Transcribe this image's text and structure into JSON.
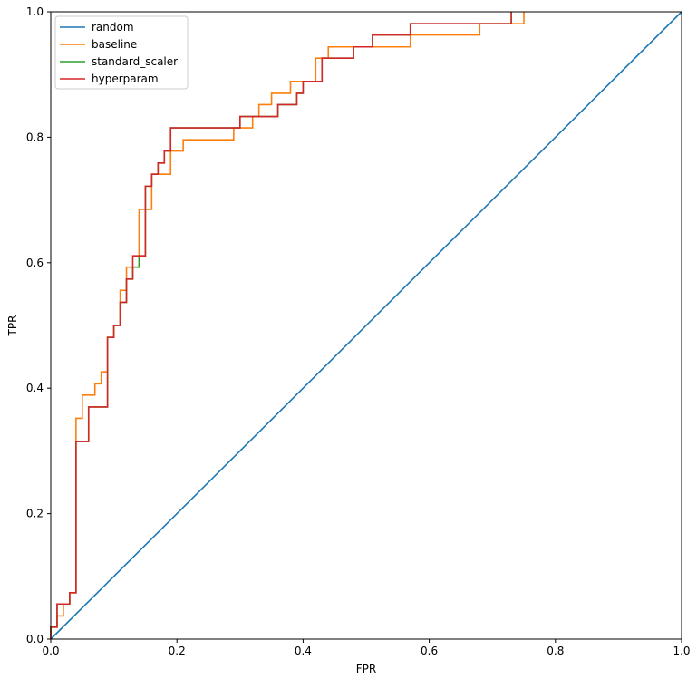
{
  "chart_data": {
    "type": "line",
    "title": "",
    "xlabel": "FPR",
    "ylabel": "TPR",
    "xlim": [
      0,
      1
    ],
    "ylim": [
      0,
      1
    ],
    "xticks": [
      "0.0",
      "0.2",
      "0.4",
      "0.6",
      "0.8",
      "1.0"
    ],
    "yticks": [
      "0.0",
      "0.2",
      "0.4",
      "0.6",
      "0.8",
      "1.0"
    ],
    "grid": false,
    "legend_position": "top-left",
    "series": [
      {
        "name": "random",
        "color": "#1f77b4",
        "x": [
          0,
          1
        ],
        "y": [
          0,
          1
        ]
      },
      {
        "name": "baseline",
        "color": "#ff7f0e",
        "x": [
          0,
          0,
          0.01,
          0.01,
          0.02,
          0.02,
          0.03,
          0.03,
          0.04,
          0.04,
          0.05,
          0.05,
          0.07,
          0.07,
          0.08,
          0.08,
          0.09,
          0.09,
          0.1,
          0.1,
          0.11,
          0.11,
          0.12,
          0.12,
          0.14,
          0.14,
          0.16,
          0.16,
          0.19,
          0.19,
          0.21,
          0.21,
          0.29,
          0.29,
          0.32,
          0.32,
          0.33,
          0.33,
          0.35,
          0.35,
          0.38,
          0.38,
          0.42,
          0.42,
          0.44,
          0.44,
          0.5,
          0.5,
          0.57,
          0.57,
          0.68,
          0.68,
          0.75,
          0.75
        ],
        "y": [
          0,
          0.019,
          0.019,
          0.037,
          0.037,
          0.056,
          0.056,
          0.074,
          0.074,
          0.352,
          0.352,
          0.389,
          0.389,
          0.407,
          0.407,
          0.426,
          0.426,
          0.481,
          0.481,
          0.5,
          0.5,
          0.556,
          0.556,
          0.593,
          0.593,
          0.685,
          0.685,
          0.741,
          0.741,
          0.778,
          0.778,
          0.796,
          0.796,
          0.815,
          0.815,
          0.833,
          0.833,
          0.852,
          0.852,
          0.87,
          0.87,
          0.889,
          0.889,
          0.926,
          0.926,
          0.944,
          0.944,
          0.944,
          0.944,
          0.963,
          0.963,
          0.981,
          0.981,
          1.0
        ]
      },
      {
        "name": "standard_scaler",
        "color": "#2ca02c",
        "x": [
          0,
          0,
          0.01,
          0.01,
          0.03,
          0.03,
          0.04,
          0.04,
          0.06,
          0.06,
          0.09,
          0.09,
          0.1,
          0.1,
          0.11,
          0.11,
          0.12,
          0.12,
          0.13,
          0.13,
          0.14,
          0.14,
          0.15,
          0.15,
          0.16,
          0.16,
          0.17,
          0.17,
          0.18,
          0.18,
          0.19,
          0.19,
          0.3,
          0.3,
          0.36,
          0.36,
          0.39,
          0.39,
          0.4,
          0.4,
          0.43,
          0.43,
          0.48,
          0.48,
          0.51,
          0.51,
          0.57,
          0.57,
          0.73,
          0.73
        ],
        "y": [
          0,
          0.019,
          0.019,
          0.056,
          0.056,
          0.074,
          0.074,
          0.315,
          0.315,
          0.37,
          0.37,
          0.481,
          0.481,
          0.5,
          0.5,
          0.537,
          0.537,
          0.574,
          0.574,
          0.593,
          0.593,
          0.611,
          0.611,
          0.722,
          0.722,
          0.741,
          0.741,
          0.759,
          0.759,
          0.778,
          0.778,
          0.815,
          0.815,
          0.833,
          0.833,
          0.852,
          0.852,
          0.87,
          0.87,
          0.889,
          0.889,
          0.926,
          0.926,
          0.944,
          0.944,
          0.963,
          0.963,
          0.981,
          0.981,
          1.0
        ]
      },
      {
        "name": "hyperparam",
        "color": "#d62728",
        "x": [
          0,
          0,
          0.01,
          0.01,
          0.03,
          0.03,
          0.04,
          0.04,
          0.06,
          0.06,
          0.09,
          0.09,
          0.1,
          0.1,
          0.11,
          0.11,
          0.12,
          0.12,
          0.13,
          0.13,
          0.15,
          0.15,
          0.16,
          0.16,
          0.17,
          0.17,
          0.18,
          0.18,
          0.19,
          0.19,
          0.3,
          0.3,
          0.36,
          0.36,
          0.39,
          0.39,
          0.4,
          0.4,
          0.43,
          0.43,
          0.48,
          0.48,
          0.51,
          0.51,
          0.57,
          0.57,
          0.73,
          0.73
        ],
        "y": [
          0,
          0.019,
          0.019,
          0.056,
          0.056,
          0.074,
          0.074,
          0.315,
          0.315,
          0.37,
          0.37,
          0.481,
          0.481,
          0.5,
          0.5,
          0.537,
          0.537,
          0.574,
          0.574,
          0.611,
          0.611,
          0.722,
          0.722,
          0.741,
          0.741,
          0.759,
          0.759,
          0.778,
          0.778,
          0.815,
          0.815,
          0.833,
          0.833,
          0.852,
          0.852,
          0.87,
          0.87,
          0.889,
          0.889,
          0.926,
          0.926,
          0.944,
          0.944,
          0.963,
          0.963,
          0.981,
          0.981,
          1.0
        ]
      }
    ]
  }
}
